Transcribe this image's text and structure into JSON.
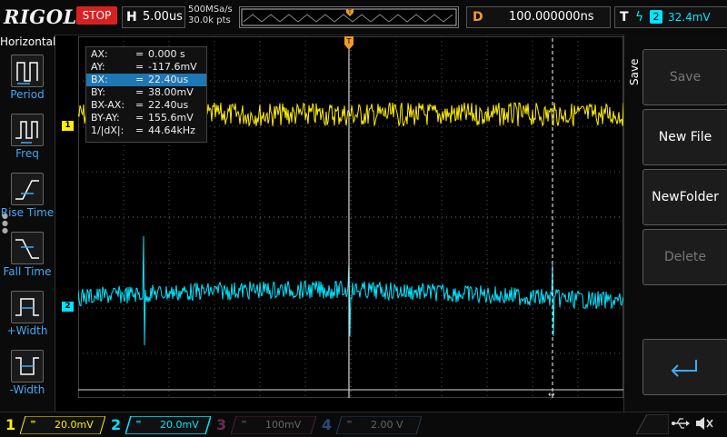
{
  "brand": "RIGOL",
  "status": "STOP",
  "horizontal": {
    "label": "H",
    "timebase": "5.00us",
    "sample_rate": "500MSa/s",
    "memory_depth": "30.0k pts"
  },
  "delay": {
    "label": "D",
    "value": "100.000000ns"
  },
  "trigger": {
    "label": "T",
    "edge_icon": "rising-edge-icon",
    "source": "2",
    "level": "32.4mV"
  },
  "left_menu": {
    "title": "Horizontal",
    "items": [
      {
        "label": "Period",
        "icon": "period-icon"
      },
      {
        "label": "Freq",
        "icon": "freq-icon"
      },
      {
        "label": "Rise Time",
        "icon": "rise-time-icon"
      },
      {
        "label": "Fall Time",
        "icon": "fall-time-icon"
      },
      {
        "label": "+Width",
        "icon": "pos-width-icon"
      },
      {
        "label": "-Width",
        "icon": "neg-width-icon"
      }
    ]
  },
  "cursors": {
    "rows": [
      {
        "key": "AX:",
        "eq": "=",
        "value": "0.000 s"
      },
      {
        "key": "AY:",
        "eq": "=",
        "value": "-117.6mV"
      },
      {
        "key": "BX:",
        "eq": "=",
        "value": "22.40us"
      },
      {
        "key": "BY:",
        "eq": "=",
        "value": "38.00mV"
      },
      {
        "key": "BX-AX:",
        "eq": "=",
        "value": "22.40us"
      },
      {
        "key": "BY-AY:",
        "eq": "=",
        "value": "155.6mV"
      },
      {
        "key": "1/|dX|:",
        "eq": "=",
        "value": "44.64kHz"
      }
    ],
    "selected_row": 2
  },
  "channel_markers": {
    "ch1": "1",
    "ch2": "2"
  },
  "right_menu": {
    "title": "Save",
    "buttons": [
      {
        "label": "Save",
        "enabled": false
      },
      {
        "label": "New File",
        "enabled": true
      },
      {
        "label": "NewFolder",
        "enabled": true
      },
      {
        "label": "Delete",
        "enabled": false
      }
    ],
    "enter_icon": "enter-icon"
  },
  "channels": [
    {
      "num": "1",
      "coupling": "",
      "scale": "20.0mV",
      "color": "#ffee00",
      "active": true
    },
    {
      "num": "2",
      "coupling": "",
      "scale": "20.0mV",
      "color": "#00e5ff",
      "active": true
    },
    {
      "num": "3",
      "coupling": "",
      "scale": "100mV",
      "color": "#c0208a",
      "active": false
    },
    {
      "num": "4",
      "coupling": "",
      "scale": "2.00 V",
      "color": "#2f7fd8",
      "active": false
    }
  ],
  "colors": {
    "ch1": "#ffee00",
    "ch2": "#00e5ff",
    "trigger_marker": "#f29a29",
    "cursor_selected": "#1f77b4",
    "stop": "#d92020"
  },
  "status_icons": {
    "usb": "usb-icon",
    "speaker": "speaker-muted-icon"
  }
}
